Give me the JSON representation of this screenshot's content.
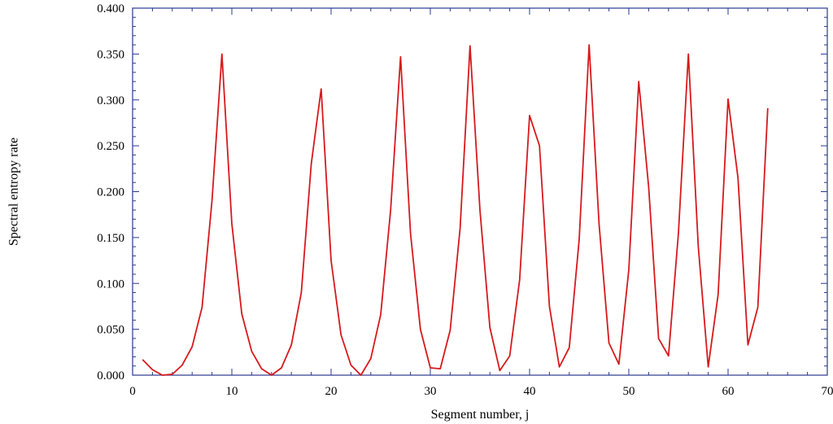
{
  "chart_data": {
    "type": "line",
    "xlabel": "Segment number, j",
    "ylabel": "Spectral entropy rate",
    "xlim": [
      0,
      70
    ],
    "ylim": [
      0,
      0.4
    ],
    "x_ticks": [
      0,
      10,
      20,
      30,
      40,
      50,
      60,
      70
    ],
    "x_tick_labels": [
      "0",
      "10",
      "20",
      "30",
      "40",
      "50",
      "60",
      "70"
    ],
    "y_ticks": [
      0,
      0.05,
      0.1,
      0.15,
      0.2,
      0.25,
      0.3,
      0.35,
      0.4
    ],
    "y_tick_labels": [
      "0.000",
      "0.050",
      "0.100",
      "0.150",
      "0.200",
      "0.250",
      "0.300",
      "0.350",
      "0.400"
    ],
    "grid": false,
    "axis_color": "#2b3990",
    "series": [
      {
        "color": "#d7191c",
        "x": [
          1,
          2,
          3,
          4,
          5,
          6,
          7,
          8,
          9,
          10,
          11,
          12,
          13,
          14,
          15,
          16,
          17,
          18,
          19,
          20,
          21,
          22,
          23,
          24,
          25,
          26,
          27,
          28,
          29,
          30,
          31,
          32,
          33,
          34,
          35,
          36,
          37,
          38,
          39,
          40,
          41,
          42,
          43,
          44,
          45,
          46,
          47,
          48,
          49,
          50,
          51,
          52,
          53,
          54,
          55,
          56,
          57,
          58,
          59,
          60,
          61,
          62,
          63,
          64
        ],
        "y": [
          0.017,
          0.006,
          0.0,
          0.001,
          0.011,
          0.031,
          0.074,
          0.19,
          0.35,
          0.165,
          0.067,
          0.026,
          0.007,
          0.0,
          0.008,
          0.033,
          0.09,
          0.23,
          0.312,
          0.125,
          0.044,
          0.011,
          0.0,
          0.018,
          0.066,
          0.18,
          0.347,
          0.155,
          0.05,
          0.008,
          0.007,
          0.049,
          0.16,
          0.359,
          0.18,
          0.052,
          0.005,
          0.021,
          0.104,
          0.283,
          0.25,
          0.075,
          0.009,
          0.03,
          0.148,
          0.36,
          0.165,
          0.035,
          0.012,
          0.115,
          0.32,
          0.205,
          0.04,
          0.021,
          0.155,
          0.35,
          0.14,
          0.009,
          0.088,
          0.301,
          0.215,
          0.033,
          0.074,
          0.291
        ]
      }
    ]
  }
}
